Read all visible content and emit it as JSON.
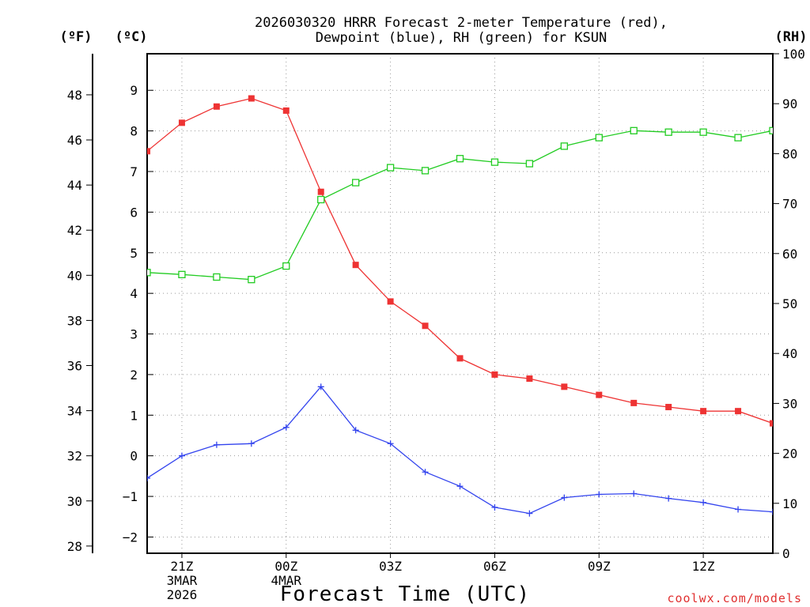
{
  "chart_data": {
    "type": "line",
    "title_line1": "2026030320 HRRR Forecast 2-meter Temperature (red),",
    "title_line2": "Dewpoint (blue), RH (green) for KSUN",
    "xlabel": "Forecast Time (UTC)",
    "credit": "coolwx.com/models",
    "units": {
      "f": "(ºF)",
      "c": "(ºC)",
      "rh": "(RH)"
    },
    "x_hours_from_20Z": [
      0,
      1,
      2,
      3,
      4,
      5,
      6,
      7,
      8,
      9,
      10,
      11,
      12,
      13,
      14,
      15,
      16,
      17,
      18
    ],
    "x_ticks": [
      {
        "h": 1,
        "lines": [
          "21Z",
          "3MAR",
          "2026"
        ]
      },
      {
        "h": 4,
        "lines": [
          "00Z",
          "4MAR"
        ]
      },
      {
        "h": 7,
        "lines": [
          "03Z"
        ]
      },
      {
        "h": 10,
        "lines": [
          "06Z"
        ]
      },
      {
        "h": 13,
        "lines": [
          "09Z"
        ]
      },
      {
        "h": 16,
        "lines": [
          "12Z"
        ]
      }
    ],
    "y_c_range": [
      -2.4,
      9.9
    ],
    "y_c_ticks": [
      -2,
      -1,
      0,
      1,
      2,
      3,
      4,
      5,
      6,
      7,
      8,
      9
    ],
    "y_f_ticks": [
      28,
      30,
      32,
      34,
      36,
      38,
      40,
      42,
      44,
      46,
      48
    ],
    "y_rh_range": [
      0,
      100
    ],
    "y_rh_ticks": [
      0,
      10,
      20,
      30,
      40,
      50,
      60,
      70,
      80,
      90,
      100
    ],
    "series": [
      {
        "name": "Temperature",
        "unit": "C",
        "color": "#ee3333",
        "marker": "filled-square",
        "values": [
          7.5,
          8.2,
          8.6,
          8.8,
          8.5,
          6.5,
          4.7,
          3.8,
          3.2,
          2.4,
          2.0,
          1.9,
          1.7,
          1.5,
          1.3,
          1.2,
          1.1,
          1.1,
          0.8
        ]
      },
      {
        "name": "Dewpoint",
        "unit": "C",
        "color": "#3344ee",
        "marker": "plus",
        "values": [
          -0.55,
          0.0,
          0.27,
          0.3,
          0.7,
          1.7,
          0.63,
          0.3,
          -0.4,
          -0.75,
          -1.27,
          -1.42,
          -1.03,
          -0.95,
          -0.93,
          -1.05,
          -1.15,
          -1.32,
          -1.38
        ]
      },
      {
        "name": "RH",
        "unit": "%",
        "color": "#22cc22",
        "marker": "open-square",
        "values": [
          56.2,
          55.8,
          55.3,
          54.8,
          57.5,
          70.8,
          74.2,
          77.2,
          76.6,
          79.0,
          78.3,
          78.0,
          81.5,
          83.2,
          84.6,
          84.3,
          84.3,
          83.2,
          84.6
        ]
      }
    ]
  }
}
